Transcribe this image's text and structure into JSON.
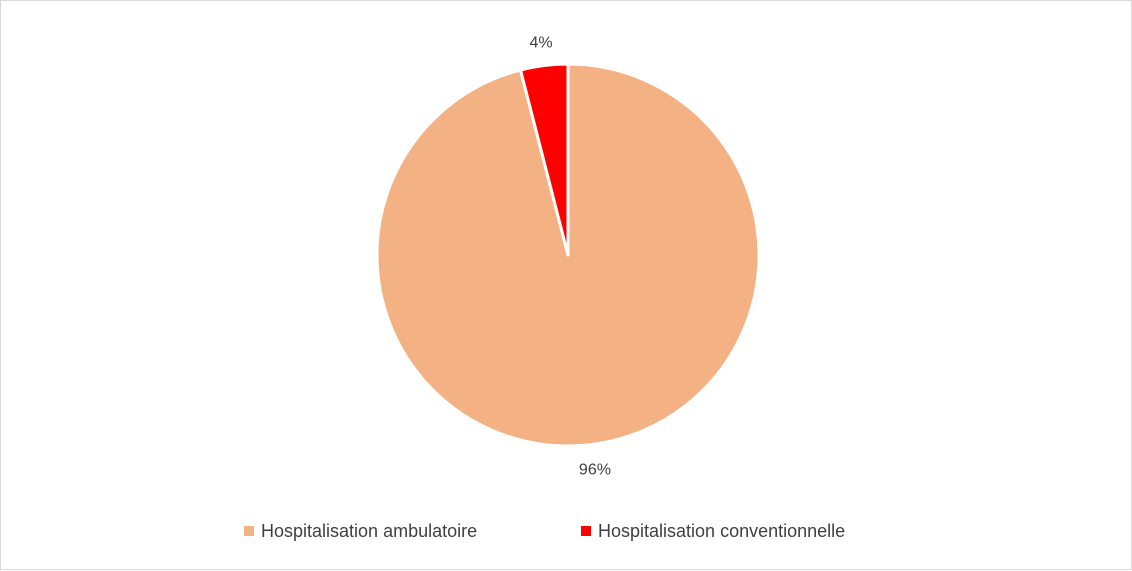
{
  "chart_data": {
    "type": "pie",
    "categories": [
      "Hospitalisation ambulatoire",
      "Hospitalisation conventionnelle"
    ],
    "values": [
      96,
      4
    ],
    "labels": [
      "96%",
      "4%"
    ],
    "colors": [
      "#F4B183",
      "#FF0000"
    ],
    "legend_position": "bottom",
    "start_angle": "12 o'clock, clockwise"
  }
}
